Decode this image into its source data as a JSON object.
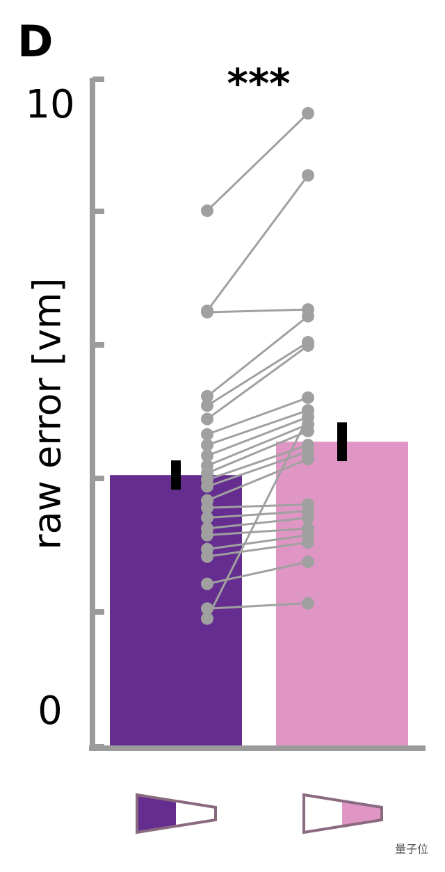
{
  "chart_data": {
    "type": "bar",
    "panel_label": "D",
    "ylabel": "raw error [vm]",
    "annotation": "***",
    "categories": [
      null,
      null
    ],
    "series": [
      {
        "colors": [
          "#652d90",
          "#e096c4"
        ],
        "values": [
          4.05,
          4.55
        ],
        "errors": [
          0.22,
          0.29
        ]
      }
    ],
    "paired": {
      "color": "#a0a0a0",
      "left": [
        8.01,
        6.51,
        6.49,
        5.23,
        5.09,
        4.89,
        4.66,
        4.5,
        4.34,
        4.19,
        4.08,
        3.98,
        3.88,
        3.67,
        3.56,
        3.41,
        3.25,
        3.15,
        2.94,
        2.83,
        2.42,
        2.05,
        1.9
      ],
      "right": [
        9.47,
        8.54,
        6.53,
        6.43,
        6.04,
        5.99,
        5.21,
        5.02,
        4.92,
        4.81,
        4.71,
        4.5,
        4.4,
        4.29,
        3.61,
        3.51,
        3.41,
        3.25,
        3.15,
        3.04,
        2.75,
        2.13,
        4.92
      ]
    },
    "ylim": [
      0,
      10
    ],
    "yticks": [
      0,
      10
    ],
    "yminor_ticks": [
      2,
      4,
      6,
      8
    ],
    "axis_color": "#9b9b9b",
    "watermark": "量子位"
  }
}
